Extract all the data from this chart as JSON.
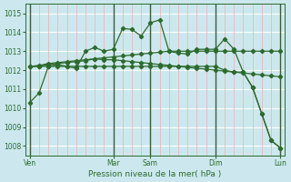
{
  "background_color": "#cce8ee",
  "grid_color_h": "#ffffff",
  "grid_color_v": "#f0a0a0",
  "line_color": "#2d6a2d",
  "ylim": [
    1007.5,
    1015.5
  ],
  "yticks": [
    1008,
    1009,
    1010,
    1011,
    1012,
    1013,
    1014,
    1015
  ],
  "xlabel": "Pression niveau de la mer( hPa )",
  "day_labels": [
    "Ven",
    "Mar",
    "Sam",
    "Dim",
    "Lun"
  ],
  "day_positions": [
    0,
    9,
    13,
    20,
    27
  ],
  "n_points": 28,
  "series": [
    [
      1010.3,
      1010.8,
      1012.2,
      1012.3,
      1012.2,
      1012.1,
      1013.0,
      1013.2,
      1013.0,
      1013.1,
      1014.2,
      1014.15,
      1013.8,
      1014.5,
      1014.65,
      1013.0,
      1012.9,
      1012.85,
      1013.1,
      1013.1,
      1013.1,
      1013.65,
      1013.1,
      1011.9,
      1011.1,
      1009.7,
      1008.3,
      1007.9
    ],
    [
      1012.2,
      1012.2,
      1012.2,
      1012.2,
      1012.2,
      1012.2,
      1012.2,
      1012.2,
      1012.2,
      1012.2,
      1012.2,
      1012.2,
      1012.2,
      1012.2,
      1012.2,
      1012.2,
      1012.2,
      1012.2,
      1012.2,
      1012.2,
      1012.2,
      1012.0,
      1011.9,
      1011.9,
      1011.1,
      1009.7,
      1008.3,
      1007.9
    ],
    [
      1012.2,
      1012.25,
      1012.35,
      1012.4,
      1012.45,
      1012.5,
      1012.55,
      1012.6,
      1012.65,
      1012.7,
      1012.75,
      1012.8,
      1012.85,
      1012.9,
      1012.95,
      1013.0,
      1013.0,
      1013.0,
      1013.0,
      1013.0,
      1013.0,
      1013.0,
      1013.0,
      1013.0,
      1013.0,
      1013.0,
      1013.0,
      1013.0
    ],
    [
      1012.2,
      1012.2,
      1012.3,
      1012.35,
      1012.4,
      1012.45,
      1012.5,
      1012.6,
      1012.55,
      1012.55,
      1012.5,
      1012.45,
      1012.4,
      1012.35,
      1012.3,
      1012.25,
      1012.2,
      1012.15,
      1012.1,
      1012.05,
      1012.0,
      1011.95,
      1011.9,
      1011.85,
      1011.8,
      1011.75,
      1011.7,
      1011.65
    ]
  ]
}
